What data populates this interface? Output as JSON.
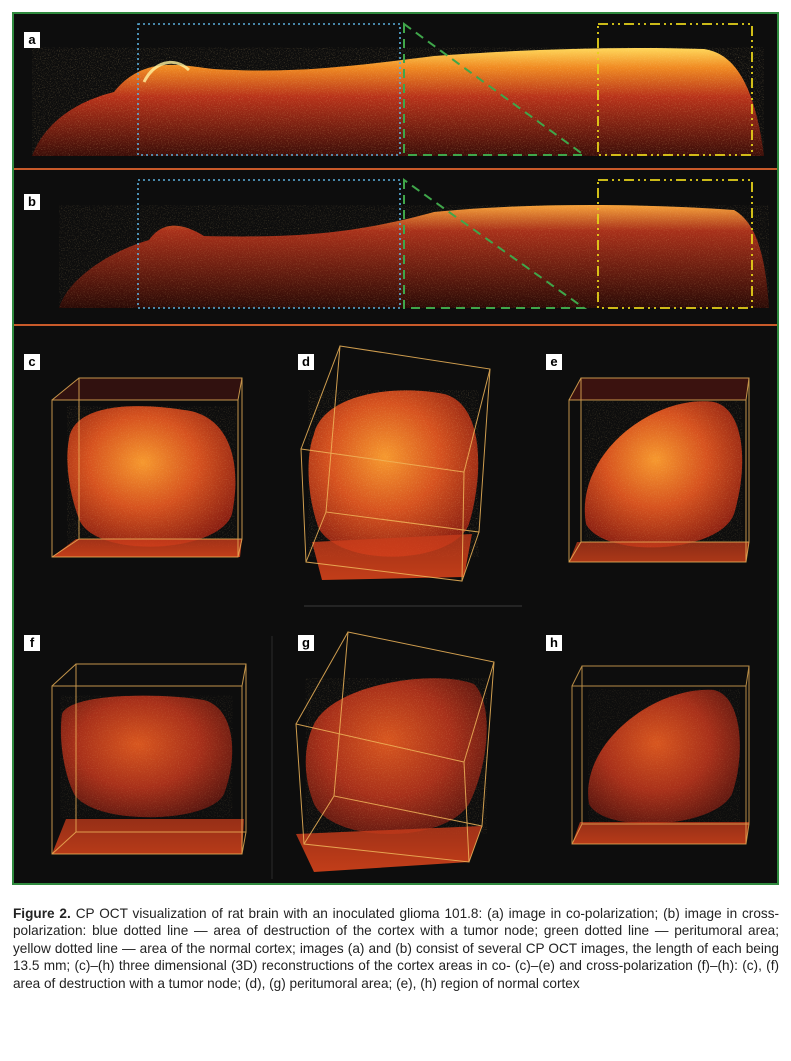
{
  "figure": {
    "panel_labels": {
      "a": "a",
      "b": "b",
      "c": "c",
      "d": "d",
      "e": "e",
      "f": "f",
      "g": "g",
      "h": "h"
    },
    "colors": {
      "frame_border": "#2f8a3e",
      "background": "#0d0d0d",
      "blue_dotted_region": "#5aaedc",
      "green_dashed_region": "#3fa64a",
      "yellow_dashdot_region": "#e6d21a",
      "tissue_signal": "#c0321a",
      "cube_edges": "#f0b65a"
    }
  },
  "caption": {
    "label": "Figure 2.",
    "text": "CP OCT visualization of rat brain with an inoculated glioma 101.8: (a) image in co-polarization; (b) image in cross-polarization: blue dotted line — area of destruction of the cortex with a tumor node; green dotted line — peritumoral area; yellow dotted line — area of the normal cortex; images (a) and (b) consist of several CP OCT images, the length of each being 13.5 mm; (c)–(h) three dimensional (3D) reconstructions of the cortex areas in co- (c)–(e) and cross-polarization (f)–(h): (c), (f) area of destruction with a tumor node; (d), (g) peritumoral area; (e), (h) region of normal cortex"
  }
}
